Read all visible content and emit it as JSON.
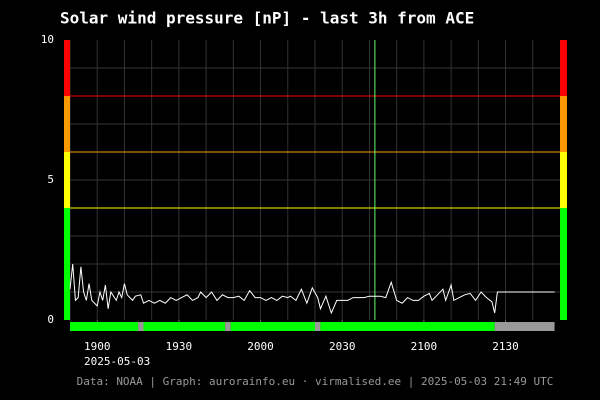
{
  "chart_data": {
    "type": "line",
    "title": "Solar wind pressure [nP] - last 3h from ACE",
    "date_label": "2025-05-03",
    "footer": "Data: NOAA | Graph: aurorainfo.eu · virmalised.ee | 2025-05-03 21:49 UTC",
    "xlim": [
      1130,
      1310
    ],
    "xticks": [
      {
        "value": 1140,
        "label": "1900"
      },
      {
        "value": 1170,
        "label": "1930"
      },
      {
        "value": 1200,
        "label": "2000"
      },
      {
        "value": 1230,
        "label": "2030"
      },
      {
        "value": 1260,
        "label": "2100"
      },
      {
        "value": 1290,
        "label": "2130"
      }
    ],
    "xgrid": [
      1130,
      1140,
      1150,
      1160,
      1170,
      1180,
      1190,
      1200,
      1210,
      1220,
      1230,
      1240,
      1250,
      1260,
      1270,
      1280,
      1290,
      1300
    ],
    "ylim": [
      0,
      10
    ],
    "yticks": [
      0,
      5,
      10
    ],
    "ygrid": [
      1,
      2,
      3,
      4,
      5,
      6,
      7,
      8,
      9
    ],
    "grid": true,
    "marker": 1242,
    "marker_color": "#66ff66",
    "bands": [
      {
        "from": 0,
        "to": 4,
        "color": "#00ff00"
      },
      {
        "from": 4,
        "to": 6,
        "color": "#ffff00"
      },
      {
        "from": 6,
        "to": 8,
        "color": "#ff9900"
      },
      {
        "from": 8,
        "to": 10,
        "color": "#ff0000"
      }
    ],
    "status": [
      {
        "start": 1130,
        "end": 1155,
        "color": "#00ff00"
      },
      {
        "start": 1155,
        "end": 1157,
        "color": "#999999"
      },
      {
        "start": 1157,
        "end": 1187,
        "color": "#00ff00"
      },
      {
        "start": 1187,
        "end": 1189,
        "color": "#999999"
      },
      {
        "start": 1189,
        "end": 1220,
        "color": "#00ff00"
      },
      {
        "start": 1220,
        "end": 1222,
        "color": "#999999"
      },
      {
        "start": 1222,
        "end": 1286,
        "color": "#00ff00"
      },
      {
        "start": 1286,
        "end": 1308,
        "color": "#999999"
      }
    ],
    "color": "#ffffff",
    "x": [
      1130,
      1131,
      1132,
      1133,
      1134,
      1135,
      1136,
      1137,
      1138,
      1140,
      1141,
      1142,
      1143,
      1144,
      1145,
      1147,
      1148,
      1149,
      1150,
      1151,
      1153,
      1154,
      1156,
      1157,
      1159,
      1161,
      1163,
      1165,
      1167,
      1169,
      1171,
      1173,
      1175,
      1177,
      1178,
      1180,
      1182,
      1184,
      1186,
      1188,
      1190,
      1192,
      1194,
      1196,
      1198,
      1200,
      1202,
      1204,
      1206,
      1208,
      1210,
      1211,
      1213,
      1215,
      1217,
      1219,
      1221,
      1222,
      1224,
      1226,
      1228,
      1230,
      1232,
      1234,
      1236,
      1238,
      1240,
      1242,
      1244,
      1246,
      1248,
      1250,
      1252,
      1254,
      1256,
      1258,
      1260,
      1262,
      1263,
      1265,
      1267,
      1268,
      1270,
      1271,
      1273,
      1275,
      1277,
      1279,
      1281,
      1283,
      1285,
      1286,
      1287,
      1308
    ],
    "values": [
      1.1,
      2.0,
      0.7,
      0.8,
      1.9,
      1.0,
      0.7,
      1.3,
      0.7,
      0.5,
      1.0,
      0.7,
      1.25,
      0.4,
      1.0,
      0.7,
      1.0,
      0.8,
      1.3,
      0.9,
      0.7,
      0.85,
      0.9,
      0.6,
      0.7,
      0.6,
      0.7,
      0.6,
      0.8,
      0.7,
      0.8,
      0.9,
      0.7,
      0.8,
      1.0,
      0.8,
      1.0,
      0.7,
      0.9,
      0.8,
      0.8,
      0.85,
      0.7,
      1.05,
      0.8,
      0.8,
      0.7,
      0.8,
      0.7,
      0.85,
      0.8,
      0.85,
      0.7,
      1.1,
      0.6,
      1.15,
      0.8,
      0.4,
      0.85,
      0.25,
      0.7,
      0.7,
      0.7,
      0.8,
      0.8,
      0.8,
      0.85,
      0.85,
      0.85,
      0.8,
      1.35,
      0.7,
      0.6,
      0.8,
      0.7,
      0.7,
      0.85,
      0.95,
      0.7,
      0.9,
      1.1,
      0.7,
      1.25,
      0.7,
      0.8,
      0.9,
      0.95,
      0.7,
      1.0,
      0.8,
      0.65,
      0.25,
      1.0,
      1.0
    ]
  }
}
